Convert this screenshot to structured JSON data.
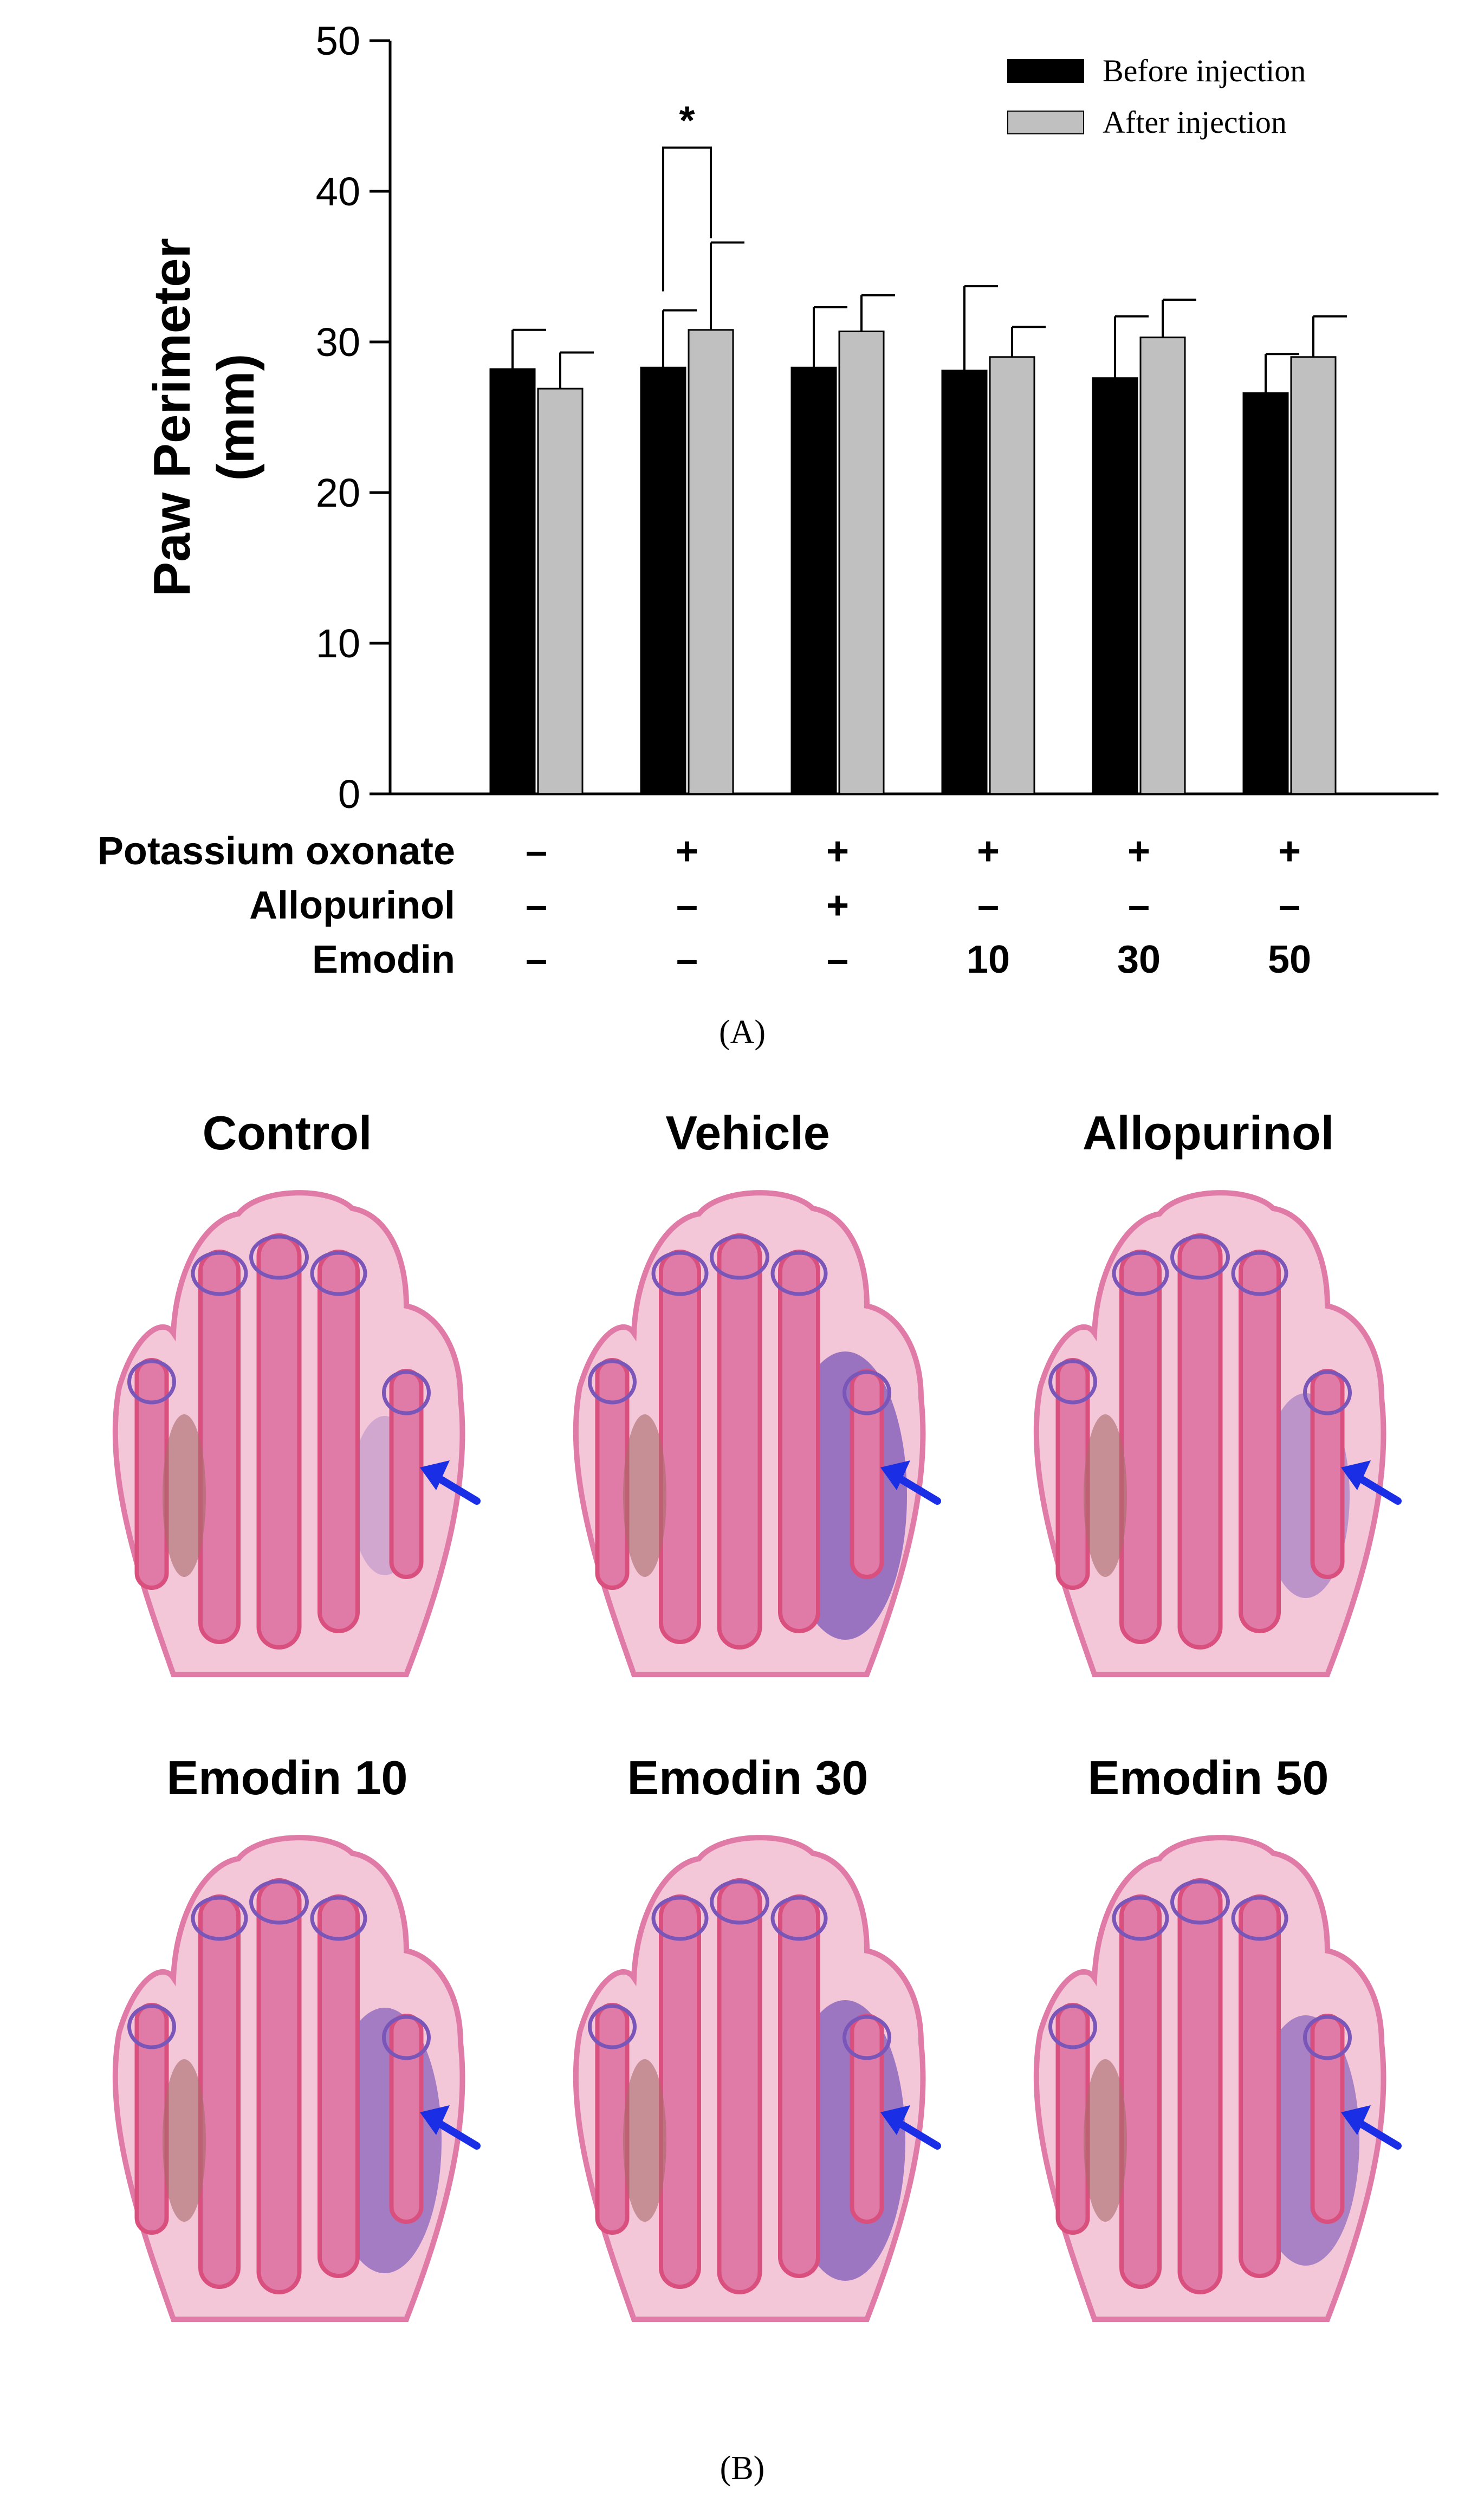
{
  "chart_data": {
    "type": "bar",
    "ylabel_line1": "Paw Perimeter",
    "ylabel_line2": "(mm)",
    "ylim": [
      0,
      50
    ],
    "yticks": [
      0,
      10,
      20,
      30,
      40,
      50
    ],
    "legend_position": "top-right",
    "series": [
      {
        "name": "Before injection",
        "color": "#000000",
        "values": [
          28.2,
          28.3,
          28.3,
          28.1,
          27.6,
          26.6
        ],
        "errors": [
          2.6,
          3.8,
          4.0,
          5.6,
          4.1,
          2.6
        ]
      },
      {
        "name": "After injection",
        "color": "#c0c0c0",
        "values": [
          26.9,
          30.8,
          30.7,
          29.0,
          30.3,
          29.0
        ],
        "errors": [
          2.4,
          5.8,
          2.4,
          2.0,
          2.5,
          2.7
        ]
      }
    ],
    "treatments": [
      {
        "label": "Potassium oxonate",
        "values": [
          "–",
          "+",
          "+",
          "+",
          "+",
          "+"
        ]
      },
      {
        "label": "Allopurinol",
        "values": [
          "–",
          "–",
          "+",
          "–",
          "–",
          "–"
        ]
      },
      {
        "label": "Emodin",
        "values": [
          "–",
          "–",
          "–",
          "10",
          "30",
          "50"
        ]
      }
    ],
    "annotations": [
      {
        "text": "*",
        "group_index": 1
      }
    ]
  },
  "panel_a_label": "(A)",
  "panel_b_label": "(B)",
  "histology": {
    "tiles": [
      {
        "title": "Control",
        "infiltration": 0.05
      },
      {
        "title": "Vehicle",
        "infiltration": 0.9
      },
      {
        "title": "Allopurinol",
        "infiltration": 0.35
      },
      {
        "title": "Emodin 10",
        "infiltration": 0.75
      },
      {
        "title": "Emodin 30",
        "infiltration": 0.85
      },
      {
        "title": "Emodin 50",
        "infiltration": 0.65
      }
    ]
  },
  "colors": {
    "tissue_pink": "#e07aa6",
    "tissue_light": "#f3c6d8",
    "bone_core": "#d9507e",
    "infiltrate_purple": "#7a56b8",
    "arrow_blue": "#1a2ee6"
  }
}
